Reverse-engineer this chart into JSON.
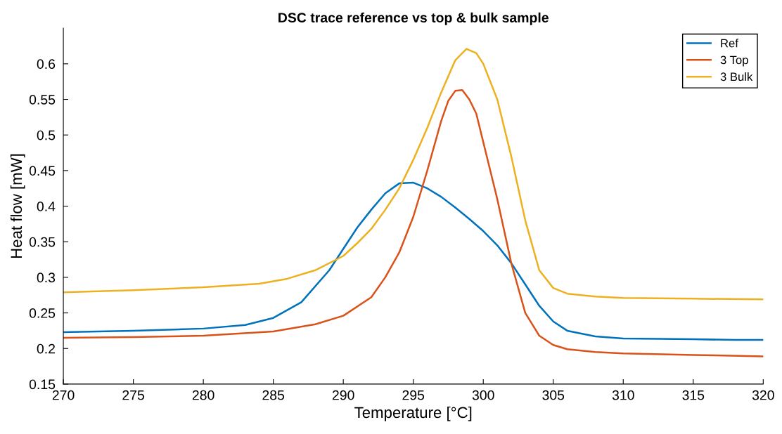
{
  "chart_data": {
    "type": "line",
    "title": "DSC trace reference vs top & bulk sample",
    "xlabel": "Temperature [°C]",
    "ylabel": "Heat flow [mW]",
    "xlim": [
      270,
      320
    ],
    "xticks": [
      270,
      275,
      280,
      285,
      290,
      295,
      300,
      305,
      310,
      315,
      320
    ],
    "ylim": [
      0.15,
      0.65
    ],
    "yticks": [
      0.15,
      0.2,
      0.25,
      0.3,
      0.35,
      0.4,
      0.45,
      0.5,
      0.55,
      0.6
    ],
    "grid": false,
    "legend": "top right",
    "marker": "none",
    "line_style": "solid",
    "series": [
      {
        "name": "Ref",
        "color": "#0072bd",
        "x": [
          270,
          275,
          280,
          283,
          285,
          287,
          289,
          291,
          292,
          293,
          294,
          295,
          296,
          297,
          298,
          299,
          300,
          301,
          302,
          303,
          304,
          305,
          306,
          308,
          310,
          315,
          318,
          320
        ],
        "values": [
          0.223,
          0.225,
          0.228,
          0.233,
          0.243,
          0.265,
          0.31,
          0.37,
          0.395,
          0.418,
          0.432,
          0.433,
          0.425,
          0.413,
          0.398,
          0.382,
          0.365,
          0.345,
          0.32,
          0.29,
          0.26,
          0.238,
          0.225,
          0.217,
          0.214,
          0.213,
          0.212,
          0.212
        ]
      },
      {
        "name": "3 Top",
        "color": "#d95319",
        "x": [
          270,
          275,
          280,
          285,
          288,
          290,
          292,
          293,
          294,
          295,
          296,
          297,
          297.5,
          298,
          298.5,
          299,
          299.5,
          300,
          301,
          302,
          303,
          304,
          305,
          306,
          308,
          310,
          315,
          320
        ],
        "values": [
          0.215,
          0.216,
          0.218,
          0.224,
          0.234,
          0.246,
          0.272,
          0.3,
          0.335,
          0.385,
          0.45,
          0.52,
          0.548,
          0.562,
          0.563,
          0.55,
          0.53,
          0.49,
          0.41,
          0.32,
          0.25,
          0.218,
          0.205,
          0.199,
          0.195,
          0.193,
          0.191,
          0.189
        ]
      },
      {
        "name": "3 Bulk",
        "color": "#edb120",
        "x": [
          270,
          275,
          280,
          284,
          286,
          288,
          290,
          291,
          292,
          293,
          294,
          295,
          296,
          297,
          298,
          298.8,
          299.5,
          300,
          301,
          302,
          303,
          304,
          305,
          306,
          308,
          310,
          315,
          320
        ],
        "values": [
          0.279,
          0.282,
          0.286,
          0.291,
          0.298,
          0.31,
          0.33,
          0.348,
          0.368,
          0.395,
          0.425,
          0.465,
          0.51,
          0.56,
          0.605,
          0.621,
          0.615,
          0.6,
          0.55,
          0.47,
          0.38,
          0.31,
          0.285,
          0.277,
          0.273,
          0.271,
          0.27,
          0.269
        ]
      }
    ]
  }
}
